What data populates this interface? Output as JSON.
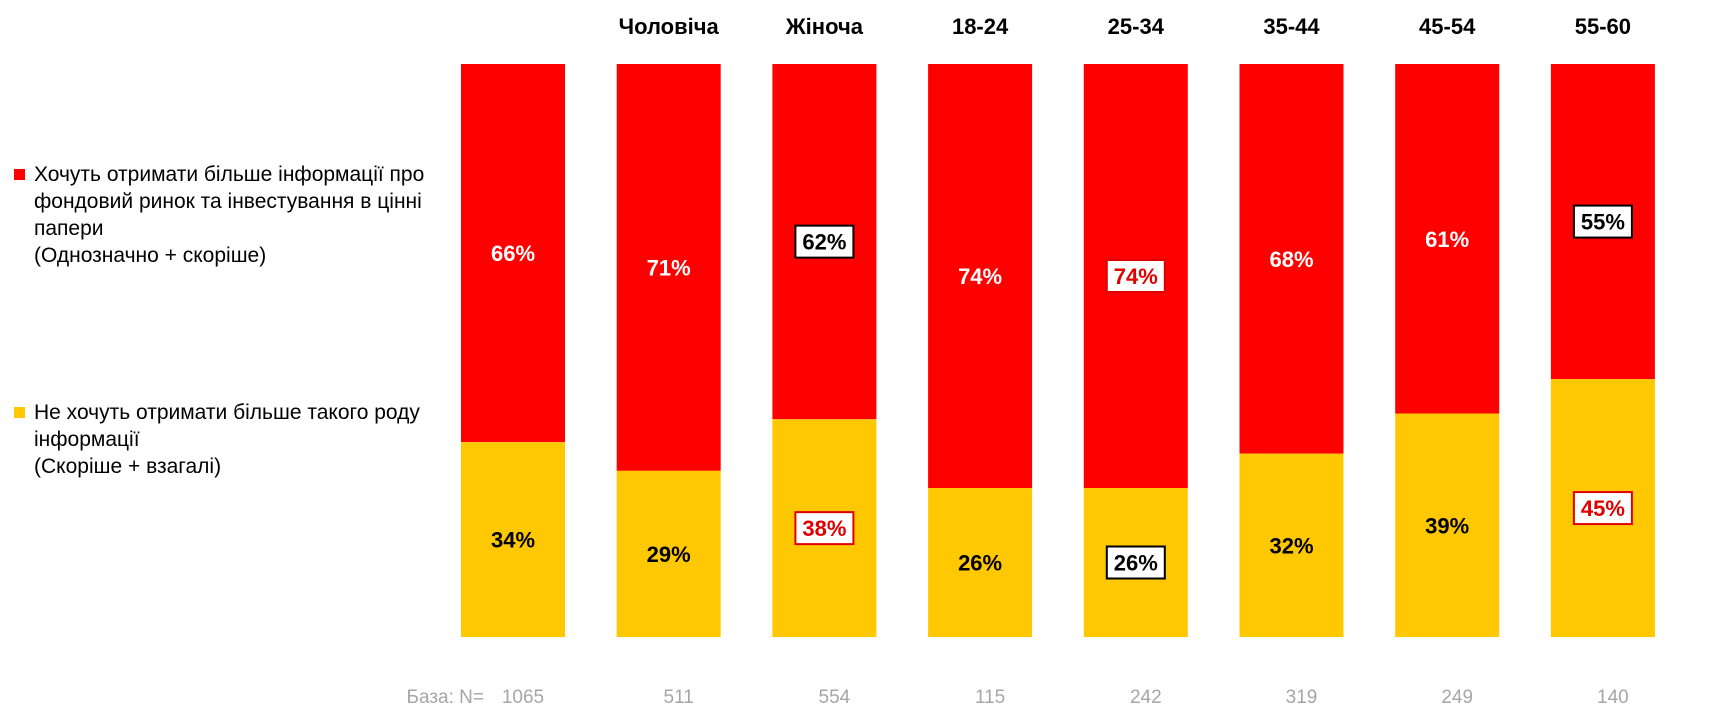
{
  "legend": {
    "want": {
      "label": "Хочуть отримати більше інформації про фондовий ринок та інвестування в цінні папери",
      "sub": "(Однозначно + скоріше)",
      "color": "#FF0000"
    },
    "not_want": {
      "label": "Не хочуть отримати більше такого роду інформації",
      "sub": "(Скоріше + взагалі)",
      "color": "#FFC800"
    }
  },
  "base": {
    "label": "База: N=",
    "values": [
      "1065",
      "511",
      "554",
      "115",
      "242",
      "319",
      "249",
      "140"
    ]
  },
  "chart_data": {
    "type": "bar",
    "stacked": true,
    "percent_stacked": true,
    "categories": [
      "",
      "Чоловіча",
      "Жіноча",
      "18-24",
      "25-34",
      "35-44",
      "45-54",
      "55-60"
    ],
    "series": [
      {
        "name": "Хочуть отримати більше інформації про фондовий ринок та інвестування в цінні папери (Однозначно + скоріше)",
        "values": [
          66,
          71,
          62,
          74,
          74,
          68,
          61,
          55
        ],
        "labels": [
          "66%",
          "71%",
          "62%",
          "74%",
          "74%",
          "68%",
          "61%",
          "55%"
        ],
        "label_style": [
          "plain",
          "plain",
          "box-black",
          "plain",
          "box-red",
          "plain",
          "plain",
          "box-black"
        ],
        "color": "#FF0000"
      },
      {
        "name": "Не хочуть отримати більше такого роду інформації (Скоріше + взагалі)",
        "values": [
          34,
          29,
          38,
          26,
          26,
          32,
          39,
          45
        ],
        "labels": [
          "34%",
          "29%",
          "38%",
          "26%",
          "26%",
          "32%",
          "39%",
          "45%"
        ],
        "label_style": [
          "plain",
          "plain",
          "box-red",
          "plain",
          "box-black",
          "plain",
          "plain",
          "box-red"
        ],
        "color": "#FFC800"
      }
    ],
    "ylim": [
      0,
      100
    ],
    "grid": false,
    "legend_position": "left"
  }
}
